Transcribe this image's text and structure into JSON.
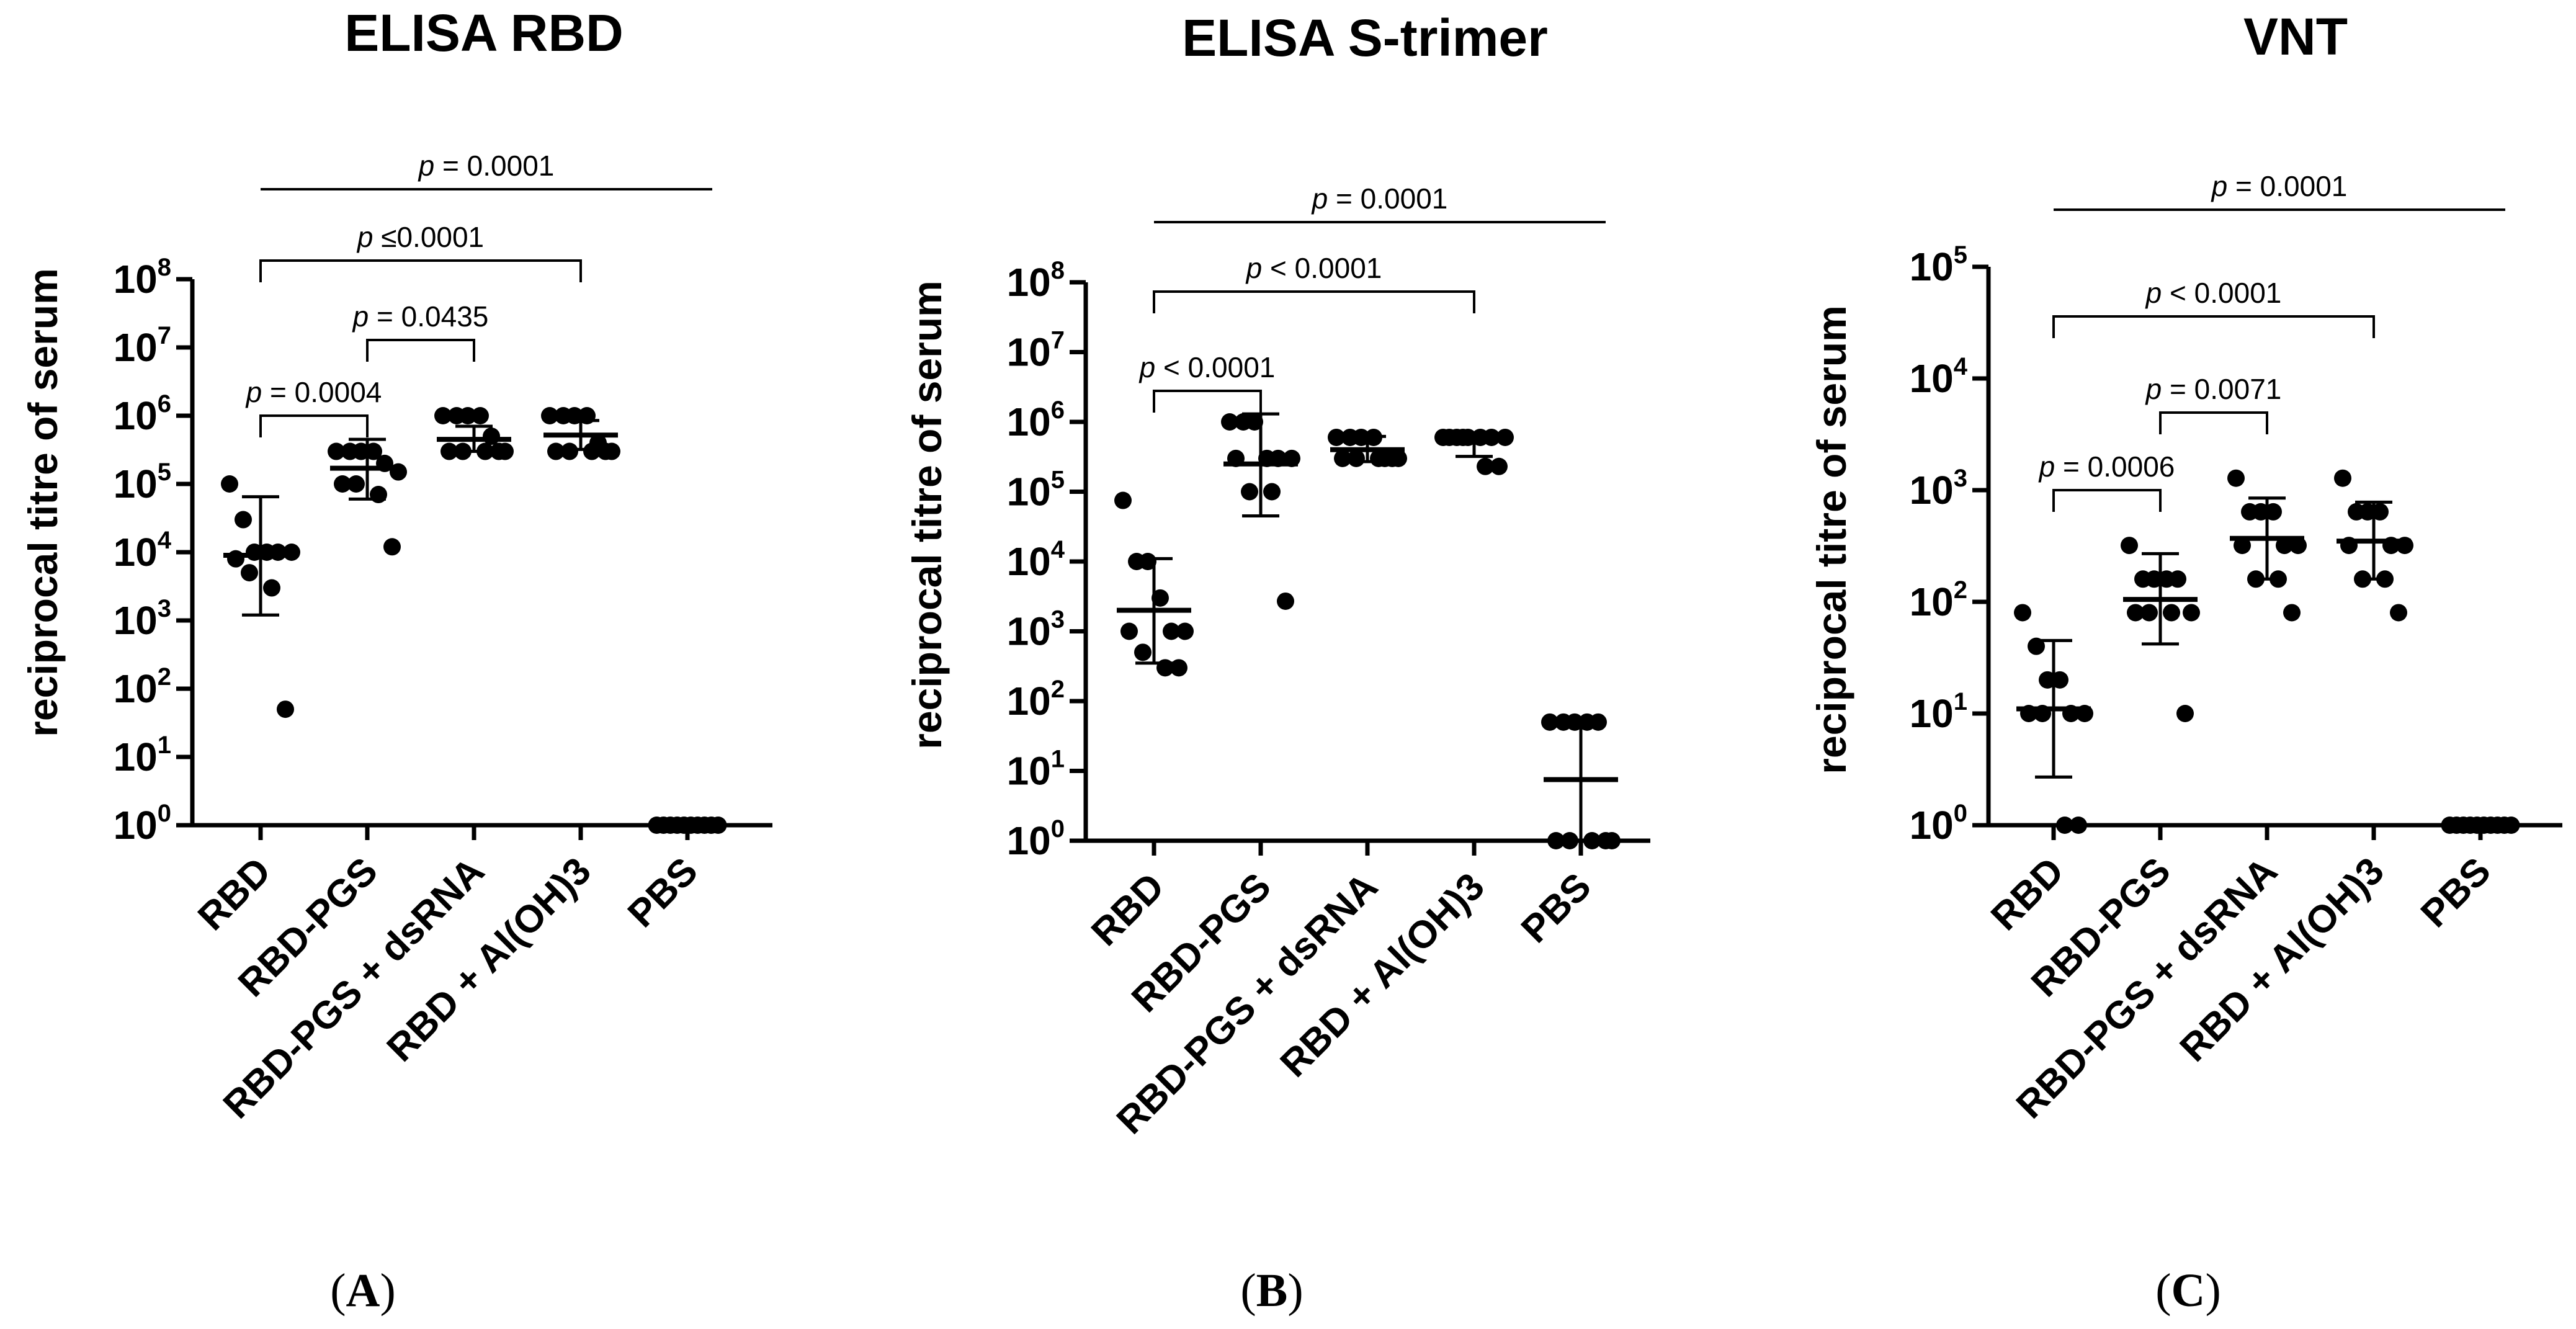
{
  "chart_data": [
    {
      "type": "scatter",
      "panel": "A",
      "title": "ELISA RBD",
      "ylabel": "reciprocal titre of serum",
      "yscale": "log",
      "ylim_exp": [
        0,
        8
      ],
      "ytick_exps": [
        0,
        1,
        2,
        3,
        4,
        5,
        6,
        7,
        8
      ],
      "categories": [
        "RBD",
        "RBD-PGS",
        "RBD-PGS + dsRNA",
        "RBD + Al(OH)3",
        "PBS"
      ],
      "groups": [
        {
          "points": [
            100000,
            30000,
            10000,
            10000,
            10000,
            10000,
            8000,
            5000,
            3000,
            50
          ],
          "mean": 9000,
          "err_low": 1200,
          "err_high": 65000
        },
        {
          "points": [
            300000,
            300000,
            300000,
            300000,
            200000,
            150000,
            100000,
            100000,
            70000,
            12000
          ],
          "mean": 170000,
          "err_low": 60000,
          "err_high": 450000
        },
        {
          "points": [
            1000000,
            1000000,
            1000000,
            1000000,
            500000,
            300000,
            300000,
            300000,
            300000,
            300000
          ],
          "mean": 450000,
          "err_low": 300000,
          "err_high": 700000
        },
        {
          "points": [
            1000000,
            1000000,
            1000000,
            1000000,
            400000,
            300000,
            300000,
            300000,
            300000,
            300000
          ],
          "mean": 520000,
          "err_low": 320000,
          "err_high": 850000
        },
        {
          "points": [
            1,
            1,
            1,
            1,
            1,
            1,
            1,
            1,
            1,
            1
          ],
          "mean": 1,
          "err_low": 1,
          "err_high": 1
        }
      ],
      "comparisons": [
        {
          "from": 0,
          "to": 1,
          "p_value": "= 0.0004",
          "style": "bracket"
        },
        {
          "from": 1,
          "to": 2,
          "p_value": "= 0.0435",
          "style": "bracket"
        },
        {
          "from": 0,
          "to": 3,
          "p_value": "≤0.0001",
          "style": "bracket"
        },
        {
          "from": 0,
          "to": 4,
          "p_value": "= 0.0001",
          "style": "line"
        }
      ]
    },
    {
      "type": "scatter",
      "panel": "B",
      "title": "ELISA S-trimer",
      "ylabel": "reciprocal titre of serum",
      "yscale": "log",
      "ylim_exp": [
        0,
        8
      ],
      "ytick_exps": [
        0,
        1,
        2,
        3,
        4,
        5,
        6,
        7,
        8
      ],
      "categories": [
        "RBD",
        "RBD-PGS",
        "RBD-PGS + dsRNA",
        "RBD + Al(OH)3",
        "PBS"
      ],
      "groups": [
        {
          "points": [
            75000,
            10000,
            10000,
            3000,
            1000,
            1000,
            1000,
            500,
            300,
            300
          ],
          "mean": 2000,
          "err_low": 350,
          "err_high": 11000
        },
        {
          "points": [
            1000000,
            1000000,
            1000000,
            300000,
            300000,
            300000,
            300000,
            100000,
            100000,
            2700
          ],
          "mean": 250000,
          "err_low": 45000,
          "err_high": 1300000
        },
        {
          "points": [
            600000,
            600000,
            600000,
            600000,
            300000,
            300000,
            300000,
            300000,
            300000,
            300000
          ],
          "mean": 400000,
          "err_low": 270000,
          "err_high": 620000
        },
        {
          "points": [
            600000,
            600000,
            600000,
            600000,
            600000,
            600000,
            600000,
            600000,
            230000,
            230000
          ],
          "mean": 550000,
          "err_low": 320000,
          "err_high": 640000
        },
        {
          "points": [
            50,
            50,
            50,
            50,
            50,
            1,
            1,
            1,
            1,
            1
          ],
          "mean": 7.5,
          "err_low": 1,
          "err_high": 45
        }
      ],
      "comparisons": [
        {
          "from": 0,
          "to": 1,
          "p_value": "< 0.0001",
          "style": "bracket"
        },
        {
          "from": 0,
          "to": 3,
          "p_value": "< 0.0001",
          "style": "bracket"
        },
        {
          "from": 0,
          "to": 4,
          "p_value": "= 0.0001",
          "style": "line"
        }
      ]
    },
    {
      "type": "scatter",
      "panel": "C",
      "title": "VNT",
      "ylabel": "reciprocal titre of serum",
      "yscale": "log",
      "ylim_exp": [
        0,
        5
      ],
      "ytick_exps": [
        0,
        1,
        2,
        3,
        4,
        5
      ],
      "categories": [
        "RBD",
        "RBD-PGS",
        "RBD-PGS + dsRNA",
        "RBD + Al(OH)3",
        "PBS"
      ],
      "groups": [
        {
          "points": [
            80,
            40,
            20,
            20,
            10,
            10,
            10,
            10,
            1,
            1
          ],
          "mean": 11,
          "err_low": 2.7,
          "err_high": 45
        },
        {
          "points": [
            320,
            160,
            160,
            160,
            160,
            80,
            80,
            80,
            80,
            10
          ],
          "mean": 105,
          "err_low": 42,
          "err_high": 270
        },
        {
          "points": [
            1280,
            640,
            640,
            640,
            320,
            320,
            320,
            160,
            160,
            80
          ],
          "mean": 370,
          "err_low": 160,
          "err_high": 850
        },
        {
          "points": [
            1280,
            640,
            640,
            640,
            320,
            320,
            320,
            160,
            160,
            80
          ],
          "mean": 350,
          "err_low": 160,
          "err_high": 780
        },
        {
          "points": [
            1,
            1,
            1,
            1,
            1,
            1,
            1,
            1,
            1,
            1
          ],
          "mean": 1,
          "err_low": 1,
          "err_high": 1
        }
      ],
      "comparisons": [
        {
          "from": 0,
          "to": 1,
          "p_value": "= 0.0006",
          "style": "bracket"
        },
        {
          "from": 1,
          "to": 2,
          "p_value": "= 0.0071",
          "style": "bracket"
        },
        {
          "from": 0,
          "to": 3,
          "p_value": "< 0.0001",
          "style": "bracket"
        },
        {
          "from": 0,
          "to": 4,
          "p_value": "= 0.0001",
          "style": "line"
        }
      ]
    }
  ],
  "p_symbol": "p",
  "tick_base": "10"
}
